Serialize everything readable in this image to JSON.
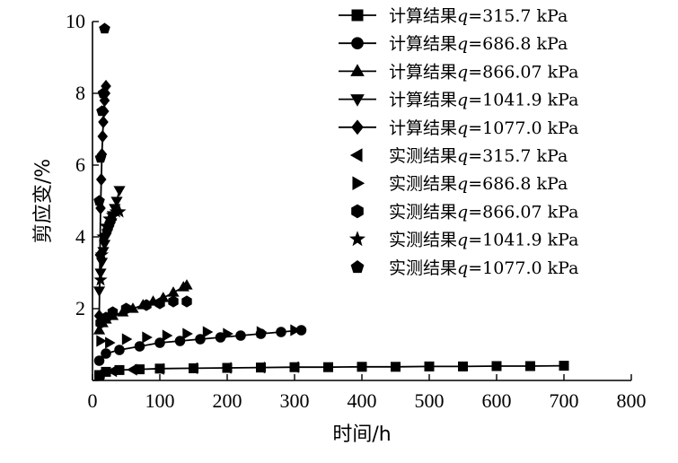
{
  "chart_data": {
    "type": "line",
    "xlabel": "时间/h",
    "ylabel": "剪应变/%",
    "xlim": [
      0,
      800
    ],
    "ylim": [
      0,
      10
    ],
    "xticks": [
      "0",
      "100",
      "200",
      "300",
      "400",
      "500",
      "600",
      "700",
      "800"
    ],
    "yticks": [
      "0",
      "2",
      "4",
      "6",
      "8",
      "10"
    ],
    "legend_position": "top-right",
    "series": [
      {
        "name": "计算结果q=315.7 kPa",
        "kind": "computed",
        "marker": "square",
        "x": [
          10,
          20,
          40,
          70,
          100,
          150,
          200,
          250,
          300,
          350,
          400,
          450,
          500,
          550,
          600,
          650,
          700
        ],
        "y": [
          0.15,
          0.24,
          0.29,
          0.31,
          0.33,
          0.34,
          0.35,
          0.36,
          0.37,
          0.37,
          0.38,
          0.38,
          0.39,
          0.39,
          0.4,
          0.4,
          0.41
        ]
      },
      {
        "name": "计算结果q=686.8 kPa",
        "kind": "computed",
        "marker": "circle",
        "x": [
          10,
          20,
          40,
          70,
          100,
          130,
          160,
          190,
          220,
          250,
          280,
          310
        ],
        "y": [
          0.55,
          0.75,
          0.85,
          0.95,
          1.05,
          1.1,
          1.15,
          1.2,
          1.25,
          1.3,
          1.35,
          1.4
        ]
      },
      {
        "name": "计算结果q=866.07 kPa",
        "kind": "computed",
        "marker": "triangle-up",
        "x": [
          10,
          15,
          20,
          30,
          45,
          60,
          75,
          90,
          105,
          120,
          135,
          140
        ],
        "y": [
          1.4,
          1.6,
          1.7,
          1.8,
          1.9,
          2.0,
          2.1,
          2.2,
          2.3,
          2.45,
          2.6,
          2.65
        ]
      },
      {
        "name": "计算结果q=1041.9 kPa",
        "kind": "computed",
        "marker": "triangle-down",
        "x": [
          10,
          12,
          14,
          16,
          18,
          20,
          22,
          24,
          26,
          28,
          30,
          33,
          36,
          40
        ],
        "y": [
          2.5,
          3.0,
          3.3,
          3.6,
          3.8,
          4.0,
          4.1,
          4.2,
          4.3,
          4.4,
          4.6,
          4.8,
          5.0,
          5.3
        ]
      },
      {
        "name": "计算结果q=1077.0 kPa",
        "kind": "computed",
        "marker": "diamond",
        "x": [
          10,
          11,
          12,
          13,
          14,
          15,
          16,
          17,
          18,
          19,
          20
        ],
        "y": [
          1.8,
          3.5,
          4.8,
          5.6,
          6.3,
          6.8,
          7.2,
          7.5,
          7.8,
          8.0,
          8.2
        ]
      },
      {
        "name": "实测结果q=315.7 kPa",
        "kind": "measured",
        "marker": "triangle-left",
        "x": [
          12,
          30,
          60,
          100,
          150,
          200,
          250,
          300
        ],
        "y": [
          0.2,
          0.26,
          0.3,
          0.32,
          0.34,
          0.35,
          0.36,
          0.37
        ]
      },
      {
        "name": "实测结果q=686.8 kPa",
        "kind": "measured",
        "marker": "triangle-right",
        "x": [
          12,
          25,
          50,
          80,
          110,
          140,
          170,
          200,
          250,
          300
        ],
        "y": [
          1.1,
          1.05,
          1.15,
          1.2,
          1.25,
          1.3,
          1.35,
          1.3,
          1.35,
          1.4
        ]
      },
      {
        "name": "实测结果q=866.07 kPa",
        "kind": "measured",
        "marker": "hexagon",
        "x": [
          12,
          20,
          30,
          50,
          80,
          100,
          120,
          140
        ],
        "y": [
          1.6,
          1.75,
          1.9,
          2.0,
          2.1,
          2.15,
          2.2,
          2.2
        ]
      },
      {
        "name": "实测结果q=1041.9 kPa",
        "kind": "measured",
        "marker": "star",
        "x": [
          12,
          14,
          16,
          20,
          25,
          30,
          35,
          40
        ],
        "y": [
          2.8,
          3.5,
          4.0,
          4.3,
          4.5,
          4.6,
          4.7,
          4.7
        ]
      },
      {
        "name": "实测结果q=1077.0 kPa",
        "kind": "measured",
        "marker": "pentagon",
        "x": [
          10,
          12,
          14,
          16,
          18
        ],
        "y": [
          5.0,
          6.2,
          7.5,
          8.0,
          9.8
        ]
      }
    ]
  }
}
